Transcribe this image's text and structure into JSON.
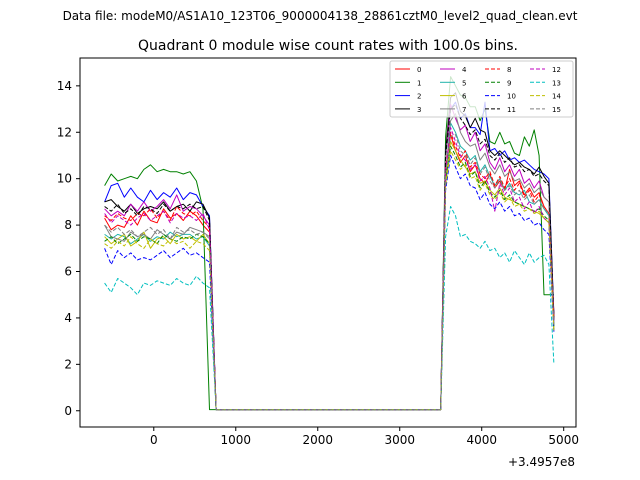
{
  "chart_data": {
    "type": "line",
    "suptitle": "Data file: modeM0/AS1A10_123T06_9000004138_28861cztM0_level2_quad_clean.evt",
    "title": "Quadrant 0 module wise count rates with 100.0s bins.",
    "xlabel": "",
    "ylabel": "",
    "x_offset_label": "+3.4957e8",
    "xlim": [
      -900,
      5150
    ],
    "ylim": [
      -0.7,
      15.2
    ],
    "xticks": [
      0,
      1000,
      2000,
      3000,
      4000,
      5000
    ],
    "yticks": [
      0,
      2,
      4,
      6,
      8,
      10,
      12,
      14
    ],
    "legend_position": "top-right",
    "legend_columns": 4,
    "grid": false,
    "x": [
      -600,
      -520,
      -440,
      -360,
      -280,
      -200,
      -120,
      -40,
      40,
      120,
      200,
      280,
      360,
      440,
      520,
      600,
      680,
      760,
      800,
      3500,
      3560,
      3620,
      3680,
      3740,
      3800,
      3860,
      3920,
      3980,
      4040,
      4100,
      4160,
      4220,
      4280,
      4340,
      4400,
      4460,
      4520,
      4580,
      4640,
      4700,
      4760,
      4820,
      4880
    ],
    "series": [
      {
        "name": "0",
        "color": "#ff0000",
        "style": "solid",
        "values": [
          8.3,
          7.8,
          8.0,
          7.9,
          8.4,
          8.0,
          8.6,
          8.2,
          8.1,
          8.7,
          8.3,
          8.5,
          8.2,
          8.6,
          8.4,
          8.0,
          7.7,
          0.05,
          0.05,
          0.05,
          10.4,
          11.9,
          11.2,
          10.7,
          11.0,
          10.3,
          10.6,
          10.0,
          9.8,
          10.2,
          9.6,
          9.9,
          9.5,
          10.4,
          9.7,
          9.9,
          9.3,
          9.6,
          9.2,
          9.4,
          8.8,
          8.5,
          4.2
        ]
      },
      {
        "name": "1",
        "color": "#008000",
        "style": "solid",
        "values": [
          9.7,
          10.2,
          9.9,
          10.0,
          10.1,
          10.0,
          10.4,
          10.6,
          10.3,
          10.4,
          10.3,
          10.3,
          10.2,
          10.3,
          9.9,
          8.7,
          0.05,
          0.05,
          0.05,
          0.05,
          11.8,
          14.4,
          14.0,
          13.6,
          13.5,
          13.1,
          13.1,
          12.5,
          13.0,
          11.6,
          11.5,
          12.0,
          11.5,
          11.6,
          11.1,
          11.0,
          11.8,
          11.4,
          12.1,
          11.0,
          5.0,
          5.0,
          5.0
        ]
      },
      {
        "name": "2",
        "color": "#0000ff",
        "style": "solid",
        "values": [
          9.0,
          9.7,
          9.8,
          9.2,
          9.6,
          9.2,
          9.0,
          9.5,
          9.1,
          9.4,
          9.2,
          9.6,
          9.1,
          9.4,
          9.3,
          8.8,
          8.4,
          0.05,
          0.05,
          0.05,
          11.2,
          13.0,
          13.3,
          12.6,
          12.8,
          12.2,
          12.2,
          11.9,
          13.3,
          11.2,
          11.3,
          11.0,
          11.2,
          10.8,
          10.9,
          10.7,
          10.8,
          10.6,
          10.4,
          10.3,
          10.2,
          10.0,
          4.1
        ]
      },
      {
        "name": "3",
        "color": "#000000",
        "style": "solid",
        "values": [
          9.0,
          9.1,
          8.8,
          8.6,
          8.9,
          8.5,
          8.7,
          8.8,
          8.7,
          9.0,
          8.6,
          8.8,
          8.9,
          8.6,
          9.0,
          8.9,
          8.3,
          0.05,
          0.05,
          0.05,
          11.2,
          13.5,
          13.7,
          12.9,
          12.7,
          12.2,
          12.6,
          12.1,
          12.0,
          11.2,
          11.0,
          11.2,
          11.0,
          10.8,
          10.6,
          10.7,
          10.5,
          10.4,
          10.2,
          10.5,
          10.1,
          9.8,
          4.0
        ]
      },
      {
        "name": "4",
        "color": "#bf00bf",
        "style": "solid",
        "values": [
          8.7,
          8.4,
          8.6,
          8.4,
          8.9,
          8.6,
          9.0,
          8.6,
          8.8,
          9.1,
          8.7,
          9.3,
          8.6,
          8.8,
          8.7,
          8.4,
          8.0,
          0.05,
          0.05,
          0.05,
          10.9,
          13.2,
          12.6,
          12.1,
          12.3,
          11.6,
          12.0,
          11.2,
          11.5,
          10.7,
          10.4,
          10.9,
          10.3,
          10.6,
          10.1,
          10.4,
          9.8,
          10.0,
          9.6,
          9.9,
          9.2,
          9.0,
          3.8
        ]
      },
      {
        "name": "5",
        "color": "#20b2aa",
        "style": "solid",
        "values": [
          7.6,
          7.4,
          7.6,
          7.5,
          7.2,
          7.4,
          7.6,
          7.3,
          7.5,
          7.4,
          7.7,
          7.5,
          7.6,
          7.6,
          7.4,
          7.5,
          7.1,
          0.05,
          0.05,
          0.05,
          10.2,
          12.4,
          12.0,
          11.4,
          11.2,
          10.8,
          11.0,
          10.3,
          10.6,
          10.1,
          9.7,
          10.0,
          9.5,
          9.8,
          9.4,
          9.3,
          9.5,
          9.0,
          8.9,
          9.1,
          8.7,
          8.4,
          3.7
        ]
      },
      {
        "name": "6",
        "color": "#bfbf00",
        "style": "solid",
        "values": [
          7.5,
          7.2,
          7.4,
          7.6,
          7.1,
          7.3,
          7.7,
          7.0,
          7.4,
          7.5,
          7.2,
          7.6,
          7.4,
          7.5,
          7.3,
          7.6,
          7.2,
          0.05,
          0.05,
          0.05,
          9.8,
          11.6,
          11.2,
          10.8,
          10.5,
          10.2,
          10.3,
          9.8,
          9.9,
          9.5,
          9.3,
          9.6,
          9.2,
          9.1,
          9.0,
          8.9,
          8.8,
          8.7,
          8.6,
          8.5,
          8.3,
          8.1,
          3.5
        ]
      },
      {
        "name": "7",
        "color": "#808080",
        "style": "solid",
        "values": [
          8.0,
          7.5,
          7.4,
          7.3,
          7.7,
          7.5,
          7.6,
          7.4,
          7.8,
          7.6,
          7.4,
          7.7,
          7.6,
          7.9,
          7.8,
          7.7,
          7.5,
          0.05,
          0.05,
          0.05,
          11.0,
          12.5,
          12.8,
          12.0,
          11.6,
          11.4,
          11.5,
          10.8,
          11.1,
          10.5,
          10.2,
          10.6,
          10.1,
          10.3,
          9.9,
          10.0,
          9.6,
          9.8,
          9.4,
          9.6,
          9.2,
          9.0,
          3.9
        ]
      },
      {
        "name": "8",
        "color": "#ff0000",
        "style": "dashed",
        "values": [
          8.4,
          8.2,
          8.5,
          8.3,
          8.2,
          8.5,
          8.4,
          8.7,
          8.3,
          8.6,
          8.2,
          8.8,
          8.5,
          8.4,
          8.6,
          8.2,
          7.9,
          0.05,
          0.05,
          0.05,
          10.5,
          12.0,
          11.4,
          10.9,
          11.2,
          10.5,
          10.7,
          10.2,
          10.0,
          10.3,
          9.7,
          10.1,
          9.6,
          10.0,
          9.5,
          9.8,
          9.2,
          9.5,
          9.0,
          9.3,
          8.8,
          8.5,
          4.0
        ]
      },
      {
        "name": "9",
        "color": "#008000",
        "style": "dashed",
        "values": [
          7.3,
          7.5,
          7.2,
          7.4,
          7.6,
          7.3,
          7.5,
          7.4,
          7.2,
          7.6,
          7.4,
          7.3,
          7.5,
          7.4,
          7.6,
          7.5,
          7.2,
          0.05,
          0.05,
          0.05,
          10.0,
          11.4,
          11.0,
          10.5,
          10.7,
          10.1,
          10.3,
          9.6,
          9.9,
          9.4,
          9.2,
          9.5,
          9.1,
          9.3,
          9.0,
          8.9,
          8.8,
          8.7,
          8.6,
          8.7,
          8.4,
          8.2,
          3.6
        ]
      },
      {
        "name": "10",
        "color": "#0000ff",
        "style": "dashed",
        "values": [
          7.0,
          6.3,
          6.9,
          6.6,
          6.8,
          6.5,
          6.6,
          6.5,
          6.7,
          6.9,
          6.6,
          6.8,
          7.0,
          6.7,
          6.8,
          6.6,
          6.4,
          0.05,
          0.05,
          0.05,
          9.5,
          11.0,
          10.5,
          10.0,
          10.2,
          9.7,
          9.6,
          9.1,
          9.4,
          8.9,
          8.7,
          9.0,
          8.6,
          8.8,
          8.4,
          8.5,
          8.2,
          8.3,
          8.0,
          8.1,
          7.8,
          7.6,
          3.4
        ]
      },
      {
        "name": "11",
        "color": "#000000",
        "style": "dashed",
        "values": [
          8.8,
          8.6,
          8.9,
          8.5,
          8.7,
          8.4,
          8.8,
          8.7,
          8.5,
          8.9,
          8.6,
          8.8,
          8.7,
          8.9,
          8.7,
          8.8,
          8.2,
          0.05,
          0.05,
          0.05,
          11.0,
          13.0,
          13.2,
          12.6,
          12.3,
          11.9,
          12.1,
          11.5,
          11.7,
          11.0,
          10.8,
          11.1,
          10.7,
          10.9,
          10.5,
          10.6,
          10.3,
          10.4,
          10.1,
          10.2,
          9.9,
          9.7,
          3.9
        ]
      },
      {
        "name": "12",
        "color": "#bf00bf",
        "style": "dashed",
        "values": [
          8.5,
          8.1,
          8.4,
          8.2,
          8.0,
          8.3,
          8.5,
          8.2,
          8.4,
          8.6,
          8.1,
          8.5,
          8.3,
          8.4,
          8.2,
          8.5,
          7.8,
          0.05,
          0.05,
          0.05,
          10.3,
          12.2,
          11.6,
          11.0,
          10.8,
          10.4,
          10.6,
          9.9,
          10.1,
          9.6,
          8.6,
          9.8,
          9.3,
          9.6,
          9.0,
          9.2,
          8.7,
          9.0,
          8.5,
          8.8,
          8.3,
          8.1,
          3.8
        ]
      },
      {
        "name": "13",
        "color": "#00bfbf",
        "style": "dashed",
        "values": [
          5.5,
          5.1,
          5.7,
          5.5,
          5.3,
          5.0,
          5.5,
          5.4,
          5.6,
          5.5,
          5.4,
          5.7,
          5.5,
          5.4,
          5.8,
          5.5,
          5.3,
          0.05,
          0.05,
          0.05,
          7.5,
          8.8,
          8.4,
          7.5,
          7.6,
          7.3,
          7.2,
          7.0,
          7.3,
          6.9,
          7.0,
          6.6,
          6.8,
          6.4,
          6.9,
          6.6,
          6.3,
          6.8,
          6.4,
          6.6,
          6.7,
          6.3,
          2.0
        ]
      },
      {
        "name": "14",
        "color": "#bfbf00",
        "style": "dashed",
        "values": [
          7.2,
          7.0,
          7.3,
          7.1,
          7.5,
          7.2,
          7.0,
          7.4,
          7.2,
          7.1,
          7.4,
          7.2,
          7.3,
          7.0,
          7.3,
          7.2,
          6.9,
          0.05,
          0.05,
          0.05,
          9.7,
          11.2,
          10.8,
          10.4,
          10.6,
          10.0,
          10.1,
          9.5,
          9.8,
          9.3,
          9.1,
          9.4,
          9.0,
          9.2,
          8.8,
          8.9,
          8.6,
          8.7,
          8.5,
          8.6,
          8.3,
          8.1,
          3.4
        ]
      },
      {
        "name": "15",
        "color": "#808080",
        "style": "dashed",
        "values": [
          8.0,
          7.7,
          7.9,
          7.6,
          7.8,
          7.5,
          7.7,
          7.9,
          7.6,
          7.8,
          7.4,
          7.9,
          7.7,
          7.8,
          7.6,
          7.7,
          7.4,
          0.05,
          0.05,
          0.05,
          10.2,
          11.8,
          11.9,
          11.2,
          11.0,
          10.6,
          10.9,
          10.2,
          10.5,
          9.9,
          9.6,
          10.0,
          9.5,
          9.7,
          9.3,
          9.5,
          9.1,
          9.3,
          8.9,
          9.1,
          8.7,
          8.5,
          3.7
        ]
      }
    ]
  }
}
